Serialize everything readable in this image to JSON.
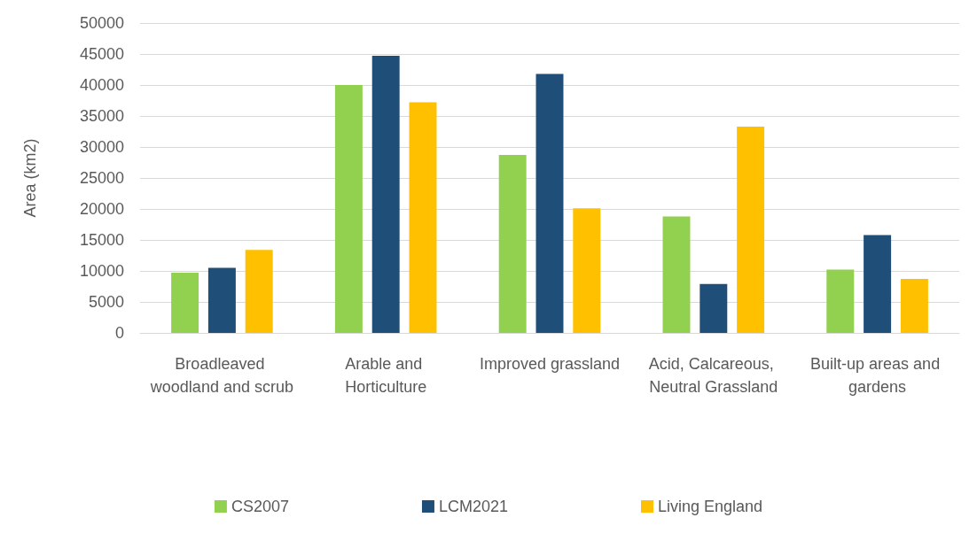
{
  "chart_data": {
    "type": "bar",
    "ylabel": "Area (km2)",
    "categories": [
      "Broadleaved woodland and scrub",
      "Arable and Horticulture",
      "Improved grassland",
      "Acid, Calcareous, Neutral Grassland",
      "Built-up areas and gardens"
    ],
    "series": [
      {
        "name": "CS2007",
        "color": "#92d050",
        "values": [
          9700,
          40000,
          28700,
          18800,
          10200
        ]
      },
      {
        "name": "LCM2021",
        "color": "#1f4e79",
        "values": [
          10500,
          44700,
          41800,
          7900,
          15800
        ]
      },
      {
        "name": "Living England",
        "color": "#ffc000",
        "values": [
          13400,
          37200,
          20100,
          33300,
          8700
        ]
      }
    ],
    "ylim": [
      0,
      50000
    ],
    "yticks": [
      0,
      5000,
      10000,
      15000,
      20000,
      25000,
      30000,
      35000,
      40000,
      45000,
      50000
    ],
    "grid": "y",
    "legend": "bottom"
  }
}
